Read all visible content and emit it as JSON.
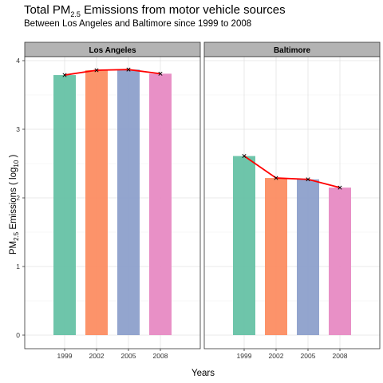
{
  "title": {
    "prefix": "Total PM",
    "sub": "2.5",
    "suffix": " Emissions from motor vehicle sources"
  },
  "subtitle": "Between Los Angeles and Baltimore since 1999 to 2008",
  "xlabel": "Years",
  "ylabel": {
    "prefix": "PM",
    "sub": "2.5",
    "middle": " Emissions ( log",
    "sub2": "10",
    "suffix": " )"
  },
  "colors": {
    "bars": [
      "#66c2a5",
      "#fc8d62",
      "#8da0cb",
      "#e78ac3"
    ],
    "trend_line": "#ff0000",
    "strip": "#b3b3b3"
  },
  "chart_data": {
    "type": "bar",
    "categories": [
      "1999",
      "2002",
      "2005",
      "2008"
    ],
    "ylim": [
      0,
      4.1
    ],
    "yticks": [
      0,
      1,
      2,
      3,
      4
    ],
    "grid": true,
    "facets": [
      {
        "label": "Los Angeles",
        "values": [
          3.79,
          3.86,
          3.87,
          3.81
        ]
      },
      {
        "label": "Baltimore",
        "values": [
          2.61,
          2.29,
          2.27,
          2.15
        ]
      }
    ]
  }
}
